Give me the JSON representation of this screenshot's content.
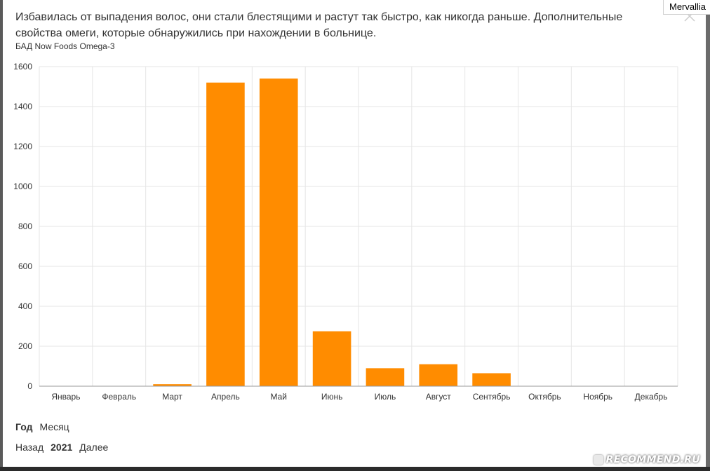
{
  "header": {
    "title": "Избавилась от выпадения волос, они стали блестящими и растут так быстро, как никогда раньше. Дополнительные свойства омеги, которые обнаружились при нахождении в больнице.",
    "subtitle": "БАД Now Foods Omega-3",
    "username": "Mervallia"
  },
  "period_toggle": {
    "year": "Год",
    "month": "Месяц"
  },
  "nav": {
    "back": "Назад",
    "year": "2021",
    "next": "Далее"
  },
  "watermark": "RECOMMEND.RU",
  "colors": {
    "bar": "#ff8c00",
    "grid": "#e6e6e6",
    "axis": "#999999",
    "text": "#333333"
  },
  "chart_data": {
    "type": "bar",
    "categories": [
      "Январь",
      "Февраль",
      "Март",
      "Апрель",
      "Май",
      "Июнь",
      "Июль",
      "Август",
      "Сентябрь",
      "Октябрь",
      "Ноябрь",
      "Декабрь"
    ],
    "values": [
      0,
      0,
      10,
      1520,
      1540,
      275,
      90,
      110,
      65,
      0,
      0,
      0
    ],
    "ylim": [
      0,
      1600
    ],
    "yticks": [
      0,
      200,
      400,
      600,
      800,
      1000,
      1200,
      1400,
      1600
    ],
    "grid": true
  }
}
